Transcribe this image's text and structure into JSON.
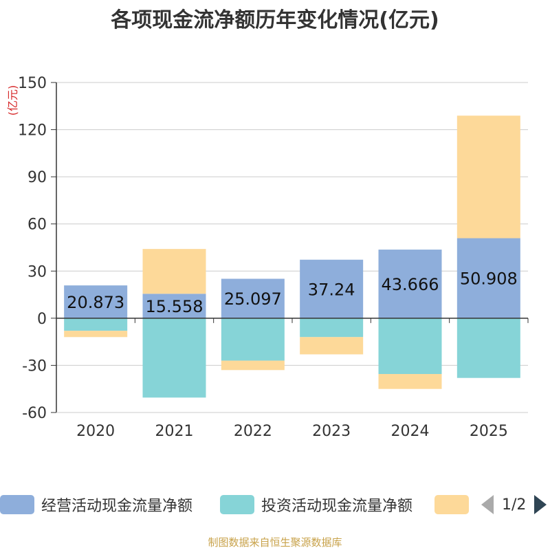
{
  "chart_data": {
    "type": "bar",
    "stacked": true,
    "title": "各项现金流净额历年变化情况(亿元)",
    "ylabel": "(亿元)",
    "xlabel": "",
    "categories": [
      "2020",
      "2021",
      "2022",
      "2023",
      "2024",
      "2025"
    ],
    "y_ticks": [
      "150",
      "120",
      "90",
      "60",
      "30",
      "0",
      "-30",
      "-60"
    ],
    "ylim": [
      -60,
      150
    ],
    "grid": true,
    "series": [
      {
        "name": "经营活动现金流量净额",
        "color": "#8eaedb",
        "values": [
          20.873,
          15.558,
          25.097,
          37.24,
          43.666,
          50.908
        ],
        "labels": [
          "20.873",
          "15.558",
          "25.097",
          "37.24",
          "43.666",
          "50.908"
        ]
      },
      {
        "name": "投资活动现金流量净额",
        "color": "#86d4d7",
        "values": [
          -8,
          -50.5,
          -27,
          -12,
          -35.5,
          -38
        ],
        "labels": []
      },
      {
        "name": "",
        "color": "#fdd999",
        "values": [
          -4,
          28.5,
          -6,
          -11,
          -9.5,
          78
        ],
        "labels": []
      }
    ],
    "legend_position": "bottom",
    "legend_page": "1/2"
  },
  "source": "制图数据来自恒生聚源数据库"
}
